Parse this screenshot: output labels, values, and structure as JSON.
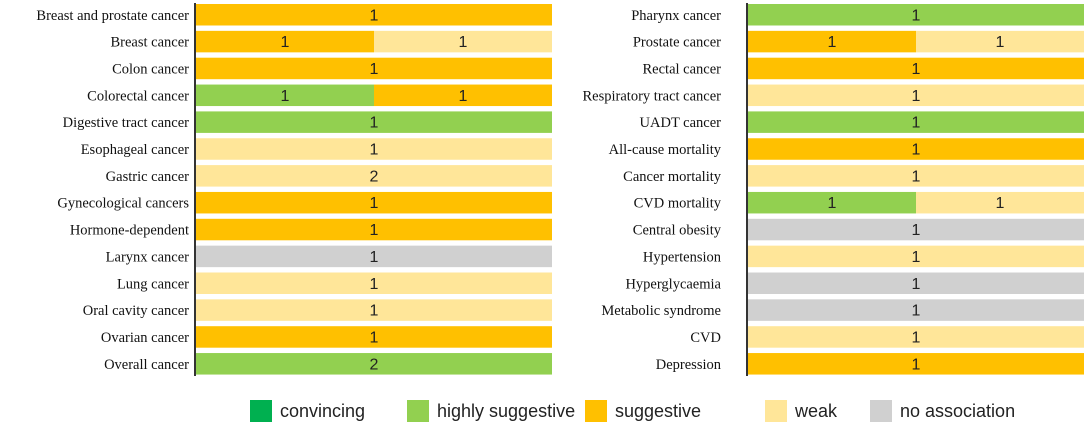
{
  "colors": {
    "convincing": "#00b050",
    "highly_suggestive": "#92d050",
    "suggestive": "#ffc000",
    "weak": "#ffe699",
    "no_association": "#d0d0d0"
  },
  "legend": [
    {
      "key": "convincing",
      "label": "convincing"
    },
    {
      "key": "highly_suggestive",
      "label": "highly suggestive"
    },
    {
      "key": "suggestive",
      "label": "suggestive"
    },
    {
      "key": "weak",
      "label": "weak"
    },
    {
      "key": "no_association",
      "label": "no association"
    }
  ],
  "chart_data": [
    {
      "type": "bar",
      "orientation": "horizontal",
      "stacked": true,
      "normalized": true,
      "title": "",
      "categories": [
        "Breast and prostate cancer",
        "Breast cancer",
        "Colon cancer",
        "Colorectal cancer",
        "Digestive tract cancer",
        "Esophageal cancer",
        "Gastric cancer",
        "Gynecological cancers",
        "Hormone-dependent",
        "Larynx cancer",
        "Lung cancer",
        "Oral cavity cancer",
        "Ovarian cancer",
        "Overall cancer"
      ],
      "series": [
        {
          "name": "convincing",
          "values": [
            0,
            0,
            0,
            0,
            0,
            0,
            0,
            0,
            0,
            0,
            0,
            0,
            0,
            0
          ]
        },
        {
          "name": "highly suggestive",
          "values": [
            0,
            0,
            0,
            1,
            1,
            0,
            0,
            0,
            0,
            0,
            0,
            0,
            0,
            2
          ]
        },
        {
          "name": "suggestive",
          "values": [
            1,
            1,
            1,
            1,
            0,
            0,
            0,
            1,
            1,
            0,
            0,
            0,
            1,
            0
          ]
        },
        {
          "name": "weak",
          "values": [
            0,
            1,
            0,
            0,
            0,
            1,
            2,
            0,
            0,
            0,
            1,
            1,
            0,
            0
          ]
        },
        {
          "name": "no association",
          "values": [
            0,
            0,
            0,
            0,
            0,
            0,
            0,
            0,
            0,
            1,
            0,
            0,
            0,
            0
          ]
        }
      ]
    },
    {
      "type": "bar",
      "orientation": "horizontal",
      "stacked": true,
      "normalized": true,
      "title": "",
      "categories": [
        "Pharynx cancer",
        "Prostate cancer",
        "Rectal cancer",
        "Respiratory tract cancer",
        "UADT cancer",
        "All-cause mortality",
        "Cancer mortality",
        "CVD mortality",
        "Central obesity",
        "Hypertension",
        "Hyperglycaemia",
        "Metabolic syndrome",
        "CVD",
        "Depression"
      ],
      "series": [
        {
          "name": "convincing",
          "values": [
            0,
            0,
            0,
            0,
            0,
            0,
            0,
            0,
            0,
            0,
            0,
            0,
            0,
            0
          ]
        },
        {
          "name": "highly suggestive",
          "values": [
            1,
            0,
            0,
            0,
            1,
            0,
            0,
            1,
            0,
            0,
            0,
            0,
            0,
            0
          ]
        },
        {
          "name": "suggestive",
          "values": [
            0,
            1,
            1,
            0,
            0,
            1,
            0,
            0,
            0,
            0,
            0,
            0,
            0,
            1
          ]
        },
        {
          "name": "weak",
          "values": [
            0,
            1,
            0,
            1,
            0,
            0,
            1,
            1,
            0,
            1,
            0,
            0,
            1,
            0
          ]
        },
        {
          "name": "no association",
          "values": [
            0,
            0,
            0,
            0,
            0,
            0,
            0,
            0,
            1,
            0,
            1,
            1,
            0,
            0
          ]
        }
      ]
    }
  ]
}
